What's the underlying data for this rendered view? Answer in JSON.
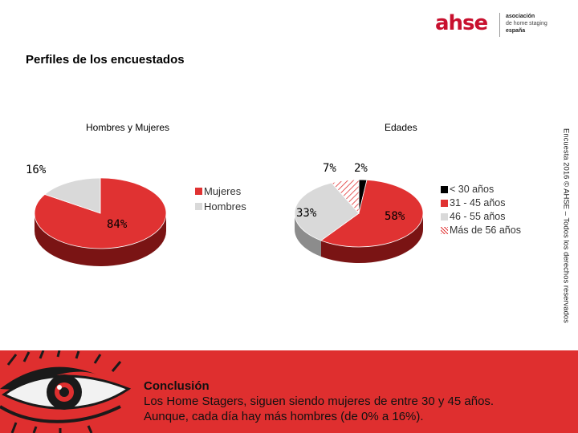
{
  "page_title": "Perfiles de los encuestados",
  "logo": {
    "mark": "ahse",
    "line1": "asociación",
    "line2": "de home staging",
    "line3": "españa"
  },
  "side_text": "Encuesta 2016 © AHSE – Todos los derechos reservados",
  "colors": {
    "red": "#e03232",
    "dark_red": "#7a1414",
    "grey": "#d9d9d9",
    "dark_grey": "#8c8c8c",
    "black": "#000000",
    "band": "#df2f2f"
  },
  "chart_data": [
    {
      "type": "pie",
      "title": "Hombres y Mujeres",
      "categories": [
        "Mujeres",
        "Hombres"
      ],
      "values": [
        84,
        16
      ],
      "labels": [
        "84%",
        "16%"
      ],
      "legend_position": "right",
      "style": "3d"
    },
    {
      "type": "pie",
      "title": "Edades",
      "categories": [
        "< 30 años",
        "31 - 45 años",
        "46 - 55 años",
        "Más de 56 años"
      ],
      "values": [
        2,
        58,
        33,
        7
      ],
      "labels": [
        "2%",
        "58%",
        "33%",
        "7%"
      ],
      "legend_position": "right",
      "style": "3d"
    }
  ],
  "conclusion": {
    "heading": "Conclusión",
    "line1": "Los Home Stagers, siguen siendo mujeres de entre 30 y 45 años.",
    "line2": "Aunque, cada día hay más hombres (de 0% a 16%)."
  }
}
